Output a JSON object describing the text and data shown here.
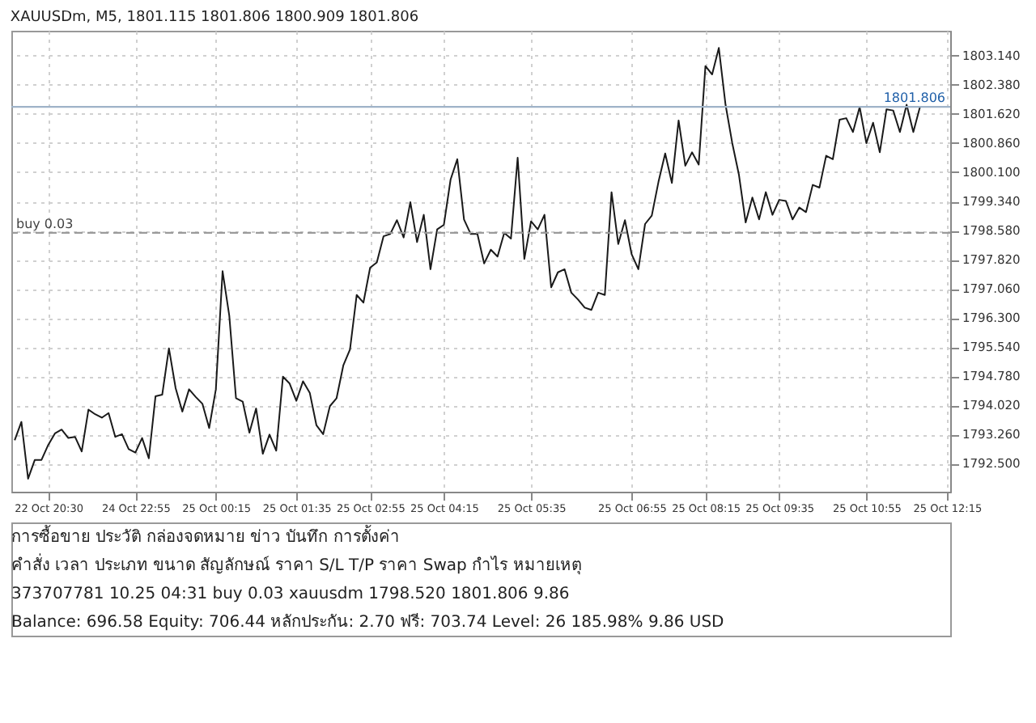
{
  "chart_data": {
    "type": "line",
    "title": "XAUUSDm, M5, 1801.115 1801.806 1800.909 1801.806",
    "categories": [
      null,
      null,
      null,
      null,
      null,
      "22 Oct 20:30",
      null,
      null,
      null,
      null,
      null,
      null,
      null,
      null,
      null,
      null,
      null,
      null,
      "24 Oct 22:55",
      null,
      null,
      null,
      null,
      null,
      null,
      null,
      null,
      null,
      null,
      null,
      "25 Oct 00:15",
      null,
      null,
      null,
      null,
      null,
      null,
      null,
      null,
      null,
      null,
      null,
      "25 Oct 01:35",
      null,
      null,
      null,
      null,
      null,
      null,
      null,
      null,
      null,
      null,
      "25 Oct 02:55",
      null,
      null,
      null,
      null,
      null,
      null,
      null,
      null,
      null,
      null,
      "25 Oct 04:15",
      null,
      null,
      null,
      null,
      null,
      null,
      null,
      null,
      null,
      null,
      null,
      null,
      "25 Oct 05:35",
      null,
      null,
      null,
      null,
      null,
      null,
      null,
      null,
      null,
      null,
      null,
      null,
      null,
      null,
      "25 Oct 06:55",
      null,
      null,
      null,
      null,
      null,
      null,
      null,
      null,
      null,
      null,
      "25 Oct 08:15",
      null,
      null,
      null,
      null,
      null,
      null,
      null,
      null,
      null,
      null,
      "25 Oct 09:35",
      null,
      null,
      null,
      null,
      null,
      null,
      null,
      null,
      null,
      null,
      null,
      null,
      "25 Oct 10:55",
      null,
      null,
      null,
      null,
      null,
      null,
      null,
      null,
      null,
      null,
      null,
      "25 Oct 12:15"
    ],
    "series": [
      {
        "color": "#1a1a1a",
        "values": [
          1793.11,
          1793.59,
          1792.11,
          1792.6,
          1792.6,
          1792.99,
          1793.29,
          1793.39,
          1793.17,
          1793.2,
          1792.82,
          1793.91,
          1793.79,
          1793.7,
          1793.82,
          1793.2,
          1793.27,
          1792.88,
          1792.79,
          1793.17,
          1792.64,
          1794.26,
          1794.3,
          1795.51,
          1794.47,
          1793.86,
          1794.44,
          1794.24,
          1794.06,
          1793.43,
          1794.44,
          1797.52,
          1796.36,
          1794.21,
          1794.12,
          1793.31,
          1793.94,
          1792.76,
          1793.26,
          1792.84,
          1794.77,
          1794.59,
          1794.14,
          1794.65,
          1794.35,
          1793.5,
          1793.27,
          1794.0,
          1794.21,
          1795.06,
          1795.48,
          1796.9,
          1796.7,
          1797.61,
          1797.75,
          1798.43,
          1798.49,
          1798.85,
          1798.4,
          1799.32,
          1798.28,
          1798.99,
          1797.57,
          1798.61,
          1798.73,
          1799.91,
          1800.44,
          1798.87,
          1798.49,
          1798.49,
          1797.72,
          1798.08,
          1797.9,
          1798.52,
          1798.37,
          1800.48,
          1797.84,
          1798.82,
          1798.61,
          1798.99,
          1797.1,
          1797.49,
          1797.57,
          1796.96,
          1796.78,
          1796.57,
          1796.51,
          1796.96,
          1796.9,
          1799.58,
          1798.23,
          1798.85,
          1797.96,
          1797.57,
          1798.75,
          1798.97,
          1799.85,
          1800.59,
          1799.82,
          1801.45,
          1800.27,
          1800.62,
          1800.3,
          1802.87,
          1802.65,
          1803.34,
          1801.86,
          1800.86,
          1800.03,
          1798.79,
          1799.44,
          1798.87,
          1799.58,
          1798.99,
          1799.38,
          1799.35,
          1798.87,
          1799.18,
          1799.06,
          1799.77,
          1799.7,
          1800.53,
          1800.44,
          1801.47,
          1801.51,
          1801.15,
          1801.8,
          1800.86,
          1801.39,
          1800.62,
          1801.74,
          1801.71,
          1801.15,
          1801.86,
          1801.15,
          1801.81,
          null,
          null,
          null,
          null
        ]
      }
    ],
    "ylim": [
      1791.77,
      1803.79
    ],
    "yticks": [
      {
        "value": 1792.5,
        "label": "1792.500"
      },
      {
        "value": 1793.26,
        "label": "1793.260"
      },
      {
        "value": 1794.02,
        "label": "1794.020"
      },
      {
        "value": 1794.78,
        "label": "1794.780"
      },
      {
        "value": 1795.54,
        "label": "1795.540"
      },
      {
        "value": 1796.3,
        "label": "1796.300"
      },
      {
        "value": 1797.06,
        "label": "1797.060"
      },
      {
        "value": 1797.82,
        "label": "1797.820"
      },
      {
        "value": 1798.58,
        "label": "1798.580"
      },
      {
        "value": 1799.34,
        "label": "1799.340"
      },
      {
        "value": 1800.1,
        "label": "1800.100"
      },
      {
        "value": 1800.86,
        "label": "1800.860"
      },
      {
        "value": 1801.62,
        "label": "1801.620"
      },
      {
        "value": 1802.38,
        "label": "1802.380"
      },
      {
        "value": 1803.14,
        "label": "1803.140"
      }
    ],
    "ref_lines": [
      {
        "axis": "y",
        "value": 1801.806,
        "label": "1801.806",
        "color": "#9fb3c8",
        "line_style": "solid"
      },
      {
        "axis": "y",
        "value": 1798.52,
        "label": "buy 0.03",
        "color": "#9a9a9a",
        "line_style": "dashed"
      }
    ],
    "grid": true,
    "marker": "none",
    "line_style": "solid",
    "annotations": [
      "การซื้อขาย   ประวัติ   กล่องจดหมาย   ข่าว   บันทึก   การตั้งค่า",
      "คำสั่ง   เวลา   ประเภท   ขนาด   สัญลักษณ์   ราคา   S/L   T/P   ราคา   Swap   กำไร   หมายเหตุ",
      "373707781   10.25 04:31   buy   0.03   xauusdm   1798.520   1801.806   9.86",
      "Balance: 696.58 Equity: 706.44 หลักประกัน: 2.70 ฟรี: 703.74 Level: 26 185.98%   9.86 USD"
    ]
  }
}
